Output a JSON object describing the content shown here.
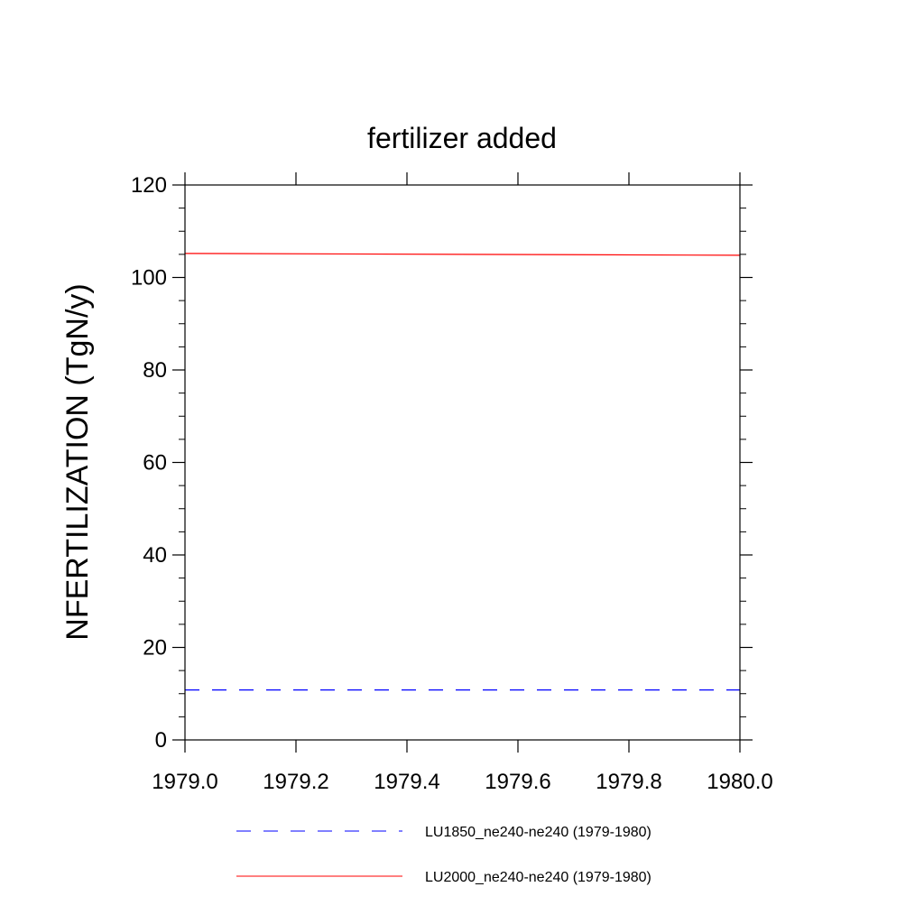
{
  "chart_data": {
    "type": "line",
    "title": "fertilizer added",
    "xlabel": "",
    "ylabel": "NFERTILIZATION  (TgN/y)",
    "xlim": [
      1979.0,
      1980.0
    ],
    "ylim": [
      0,
      120
    ],
    "x_ticks": [
      "1979.0",
      "1979.2",
      "1979.4",
      "1979.6",
      "1979.8",
      "1980.0"
    ],
    "y_ticks": [
      "0",
      "20",
      "40",
      "60",
      "80",
      "100",
      "120"
    ],
    "grid": false,
    "legend_placement": "bottom",
    "series": [
      {
        "name": "LU1850_ne240-ne240 (1979-1980)",
        "color": "#0000ff",
        "dash": "dashed",
        "x": [
          1979.0,
          1980.0
        ],
        "y": [
          10.8,
          10.8
        ]
      },
      {
        "name": "LU2000_ne240-ne240 (1979-1980)",
        "color": "#ff0000",
        "dash": "solid",
        "x": [
          1979.0,
          1980.0
        ],
        "y": [
          105.2,
          104.8
        ]
      }
    ]
  }
}
